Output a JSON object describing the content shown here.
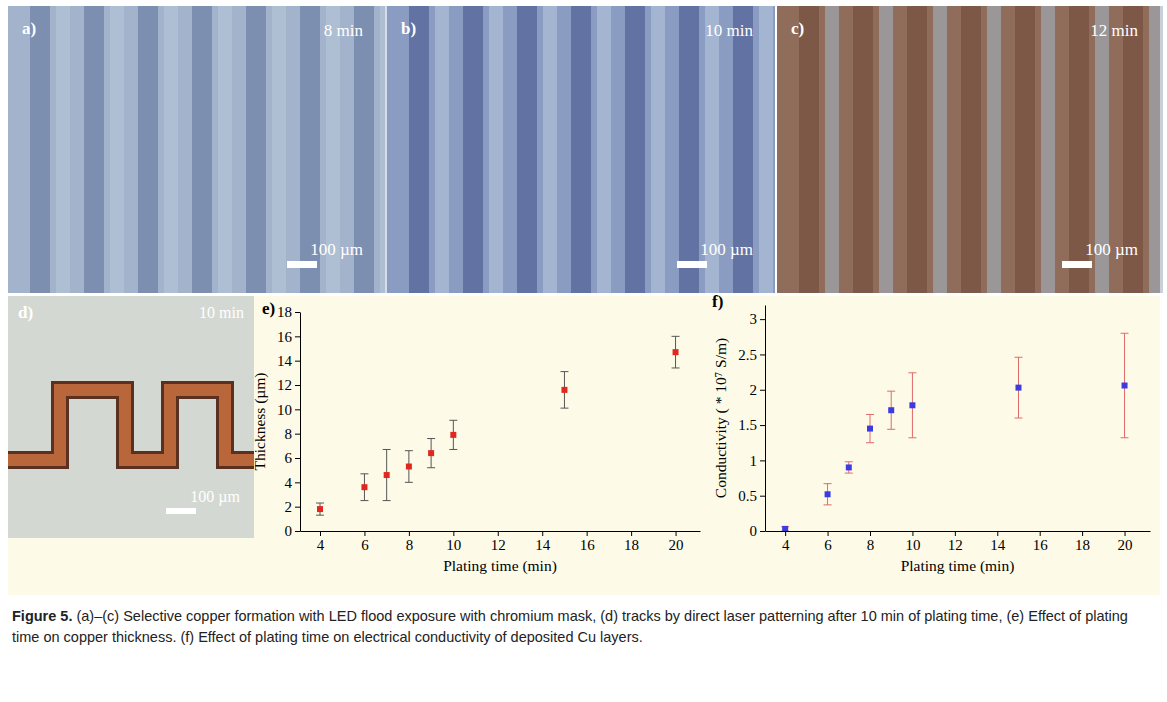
{
  "chart_data": [
    {
      "type": "scatter",
      "panel": "e)",
      "xlabel": "Plating time (min)",
      "ylabel": "Thickness (µm)",
      "x": [
        4,
        6,
        7,
        8,
        9,
        10,
        15,
        20
      ],
      "values": [
        1.8,
        3.6,
        4.6,
        5.3,
        6.4,
        7.9,
        11.6,
        14.7
      ],
      "errors": [
        0.5,
        1.1,
        2.1,
        1.3,
        1.2,
        1.2,
        1.5,
        1.3
      ],
      "color": "#e3261f",
      "marker": "square",
      "xlim": [
        3.1,
        21.1
      ],
      "ylim": [
        0,
        18
      ],
      "xticks": [
        4,
        6,
        8,
        10,
        12,
        14,
        16,
        18,
        20
      ],
      "yticks": [
        0,
        2,
        4,
        6,
        8,
        10,
        12,
        14,
        16,
        18
      ]
    },
    {
      "type": "scatter",
      "panel": "f)",
      "xlabel": "Plating time (min)",
      "ylabel": "Conductivity ( * 10⁷ S/m)",
      "x": [
        4,
        6,
        7,
        8,
        9,
        10,
        15,
        20
      ],
      "values": [
        0.03,
        0.52,
        0.9,
        1.45,
        1.71,
        1.78,
        2.03,
        2.06
      ],
      "errors": [
        0.03,
        0.15,
        0.08,
        0.2,
        0.27,
        0.46,
        0.43,
        0.74
      ],
      "color": "#3b3be0",
      "marker": "square",
      "xlim": [
        3.05,
        21.2
      ],
      "ylim": [
        0,
        3.2
      ],
      "xticks": [
        4,
        6,
        8,
        10,
        12,
        14,
        16,
        18,
        20
      ],
      "yticks": [
        0,
        0.5,
        1,
        1.5,
        2,
        2.5,
        3
      ]
    }
  ],
  "figure": {
    "images": [
      {
        "label": "a)",
        "time": "8 min",
        "scale_bar": "100 µm"
      },
      {
        "label": "b)",
        "time": "10 min",
        "scale_bar": "100 µm"
      },
      {
        "label": "c)",
        "time": "12 min",
        "scale_bar": "100 µm"
      },
      {
        "label": "d)",
        "time": "10 min",
        "scale_bar": "100 µm"
      }
    ],
    "caption": {
      "label": "Figure 5.",
      "text": "(a)–(c) Selective copper formation with LED flood exposure with chromium mask, (d) tracks by direct laser patterning after 10 min of plating time, (e) Effect of plating time on copper thickness. (f) Effect of plating time on electrical conductivity of deposited Cu layers."
    }
  }
}
